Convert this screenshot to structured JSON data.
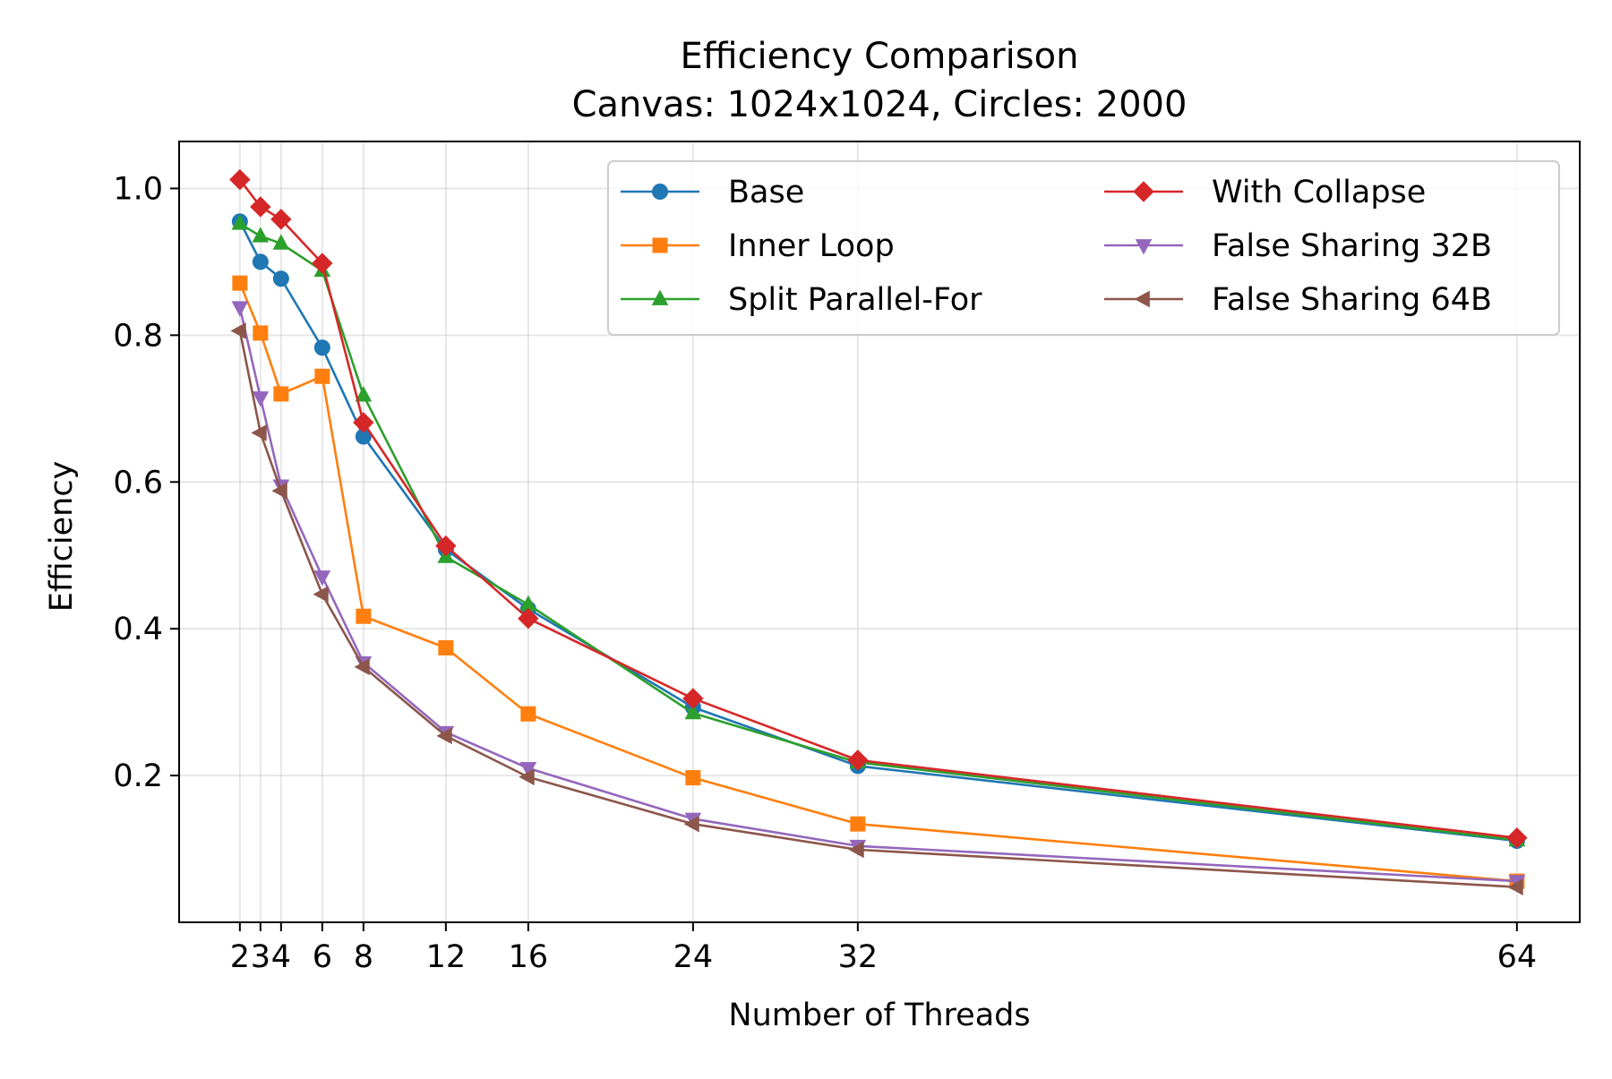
{
  "chart_data": {
    "type": "line",
    "title": "Efficiency Comparison",
    "subtitle": "Canvas: 1024x1024, Circles: 2000",
    "xlabel": "Number of Threads",
    "ylabel": "Efficiency",
    "x": [
      2,
      3,
      4,
      6,
      8,
      12,
      16,
      24,
      32,
      64
    ],
    "xticks": [
      2,
      3,
      4,
      6,
      8,
      12,
      16,
      24,
      32,
      64
    ],
    "xlim": [
      -0.95,
      67.05
    ],
    "yticks": [
      0.2,
      0.4,
      0.6,
      0.8,
      1.0
    ],
    "ytick_labels": [
      "0.2",
      "0.4",
      "0.6",
      "0.8",
      "1.0"
    ],
    "ylim": [
      0.0,
      1.064
    ],
    "grid": true,
    "legend_position": "top-right",
    "series": [
      {
        "name": "Base",
        "color": "#1f77b4",
        "marker": "circle",
        "values": [
          0.955,
          0.9,
          0.877,
          0.783,
          0.662,
          0.508,
          0.427,
          0.293,
          0.213,
          0.111
        ]
      },
      {
        "name": "Inner Loop",
        "color": "#ff7f0e",
        "marker": "square",
        "values": [
          0.871,
          0.803,
          0.72,
          0.744,
          0.417,
          0.374,
          0.284,
          0.197,
          0.134,
          0.056
        ]
      },
      {
        "name": "Split Parallel-For",
        "color": "#2ca02c",
        "marker": "triangle-up",
        "values": [
          0.952,
          0.935,
          0.925,
          0.888,
          0.718,
          0.498,
          0.433,
          0.285,
          0.218,
          0.112
        ]
      },
      {
        "name": "With Collapse",
        "color": "#d62728",
        "marker": "diamond",
        "values": [
          1.012,
          0.975,
          0.958,
          0.898,
          0.681,
          0.513,
          0.414,
          0.305,
          0.221,
          0.115
        ]
      },
      {
        "name": "False Sharing 32B",
        "color": "#9467bd",
        "marker": "triangle-down",
        "values": [
          0.838,
          0.715,
          0.595,
          0.471,
          0.354,
          0.259,
          0.21,
          0.141,
          0.104,
          0.056
        ]
      },
      {
        "name": "False Sharing 64B",
        "color": "#8c564b",
        "marker": "triangle-left",
        "values": [
          0.806,
          0.667,
          0.588,
          0.447,
          0.348,
          0.254,
          0.198,
          0.134,
          0.099,
          0.048
        ]
      }
    ]
  }
}
